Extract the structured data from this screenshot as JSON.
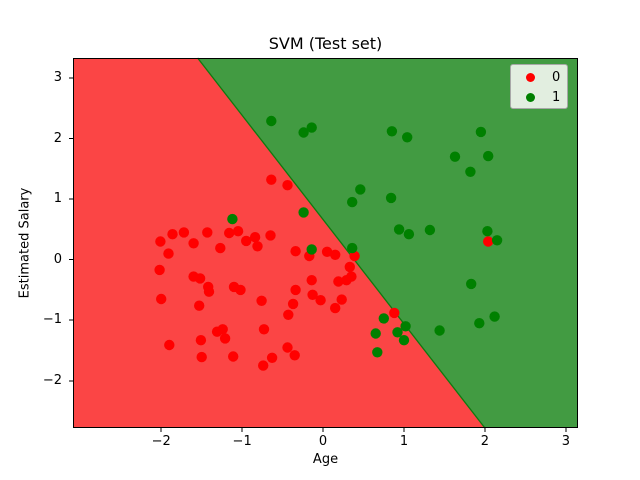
{
  "title": "SVM (Test set)",
  "xlabel": "Age",
  "ylabel": "Estimated Salary",
  "legend": {
    "position": "upper right",
    "items": [
      {
        "label": "0",
        "color": "#ff0000"
      },
      {
        "label": "1",
        "color": "#008000"
      }
    ]
  },
  "chart_data": {
    "type": "scatter",
    "title": "SVM (Test set)",
    "xlabel": "Age",
    "ylabel": "Estimated Salary",
    "xlim": [
      -3.09,
      3.15
    ],
    "ylim": [
      -2.78,
      3.33
    ],
    "grid": false,
    "legend_position": "upper right",
    "x_ticks": {
      "values": [
        -2,
        -1,
        0,
        1,
        2,
        3
      ],
      "labels": [
        "−2",
        "−1",
        "0",
        "1",
        "2",
        "3"
      ]
    },
    "y_ticks": {
      "values": [
        3,
        2,
        1,
        0,
        -1,
        -2
      ],
      "labels": [
        "3",
        "2",
        "1",
        "0",
        "−1",
        "−2"
      ]
    },
    "decision_regions": {
      "class0_color": "#fb4545",
      "class1_color": "#429b42",
      "boundary_color": "#0f7a0f",
      "boundary": {
        "x_at_y_top": -1.55,
        "x_at_y_bottom": 2.0
      }
    },
    "marker_radius": 5.2,
    "series": [
      {
        "name": "0",
        "color": "#ff0000",
        "points": [
          [
            -2.01,
            0.3
          ],
          [
            -1.86,
            0.42
          ],
          [
            -1.72,
            0.45
          ],
          [
            -1.6,
            0.27
          ],
          [
            -1.43,
            0.45
          ],
          [
            -1.27,
            0.19
          ],
          [
            -1.16,
            0.44
          ],
          [
            -1.05,
            0.47
          ],
          [
            -0.95,
            0.31
          ],
          [
            -0.84,
            0.37
          ],
          [
            -0.81,
            0.22
          ],
          [
            -1.91,
            0.1
          ],
          [
            -0.65,
            0.4
          ],
          [
            -0.34,
            0.14
          ],
          [
            0.05,
            0.13
          ],
          [
            0.15,
            0.08
          ],
          [
            -0.17,
            0.06
          ],
          [
            0.39,
            0.06
          ],
          [
            0.33,
            -0.12
          ],
          [
            0.35,
            -0.28
          ],
          [
            -0.14,
            -0.34
          ],
          [
            0.29,
            -0.34
          ],
          [
            0.19,
            -0.36
          ],
          [
            -0.34,
            -0.5
          ],
          [
            -0.13,
            -0.58
          ],
          [
            -0.03,
            -0.67
          ],
          [
            -0.37,
            -0.73
          ],
          [
            0.23,
            -0.66
          ],
          [
            0.15,
            -0.8
          ],
          [
            -0.43,
            -0.91
          ],
          [
            0.88,
            -0.88
          ],
          [
            -2.02,
            -0.17
          ],
          [
            -1.6,
            -0.28
          ],
          [
            -1.52,
            -0.31
          ],
          [
            -1.42,
            -0.45
          ],
          [
            -1.41,
            -0.53
          ],
          [
            -1.1,
            -0.45
          ],
          [
            -1.02,
            -0.5
          ],
          [
            -2.0,
            -0.65
          ],
          [
            -1.53,
            -0.76
          ],
          [
            -0.76,
            -0.68
          ],
          [
            -1.9,
            -1.41
          ],
          [
            -1.51,
            -1.33
          ],
          [
            -1.5,
            -1.61
          ],
          [
            -1.31,
            -1.19
          ],
          [
            -1.24,
            -1.15
          ],
          [
            -1.21,
            -1.3
          ],
          [
            -1.11,
            -1.6
          ],
          [
            -0.73,
            -1.15
          ],
          [
            -0.63,
            -1.62
          ],
          [
            -0.74,
            -1.75
          ],
          [
            -0.44,
            -1.45
          ],
          [
            -0.35,
            -1.58
          ],
          [
            -0.64,
            1.32
          ],
          [
            -0.44,
            1.23
          ],
          [
            2.04,
            0.3
          ]
        ]
      },
      {
        "name": "1",
        "color": "#008000",
        "points": [
          [
            -0.64,
            2.29
          ],
          [
            -0.24,
            2.1
          ],
          [
            -0.14,
            2.18
          ],
          [
            0.85,
            2.12
          ],
          [
            1.04,
            2.02
          ],
          [
            1.95,
            2.11
          ],
          [
            1.63,
            1.7
          ],
          [
            2.04,
            1.71
          ],
          [
            1.82,
            1.45
          ],
          [
            0.46,
            1.16
          ],
          [
            0.36,
            0.95
          ],
          [
            0.84,
            1.02
          ],
          [
            1.32,
            0.49
          ],
          [
            0.94,
            0.5
          ],
          [
            1.06,
            0.42
          ],
          [
            -0.24,
            0.78
          ],
          [
            -1.12,
            0.67
          ],
          [
            -0.14,
            0.17
          ],
          [
            0.36,
            0.19
          ],
          [
            2.03,
            0.47
          ],
          [
            2.15,
            0.32
          ],
          [
            1.83,
            -0.4
          ],
          [
            0.75,
            -0.97
          ],
          [
            1.02,
            -1.1
          ],
          [
            0.92,
            -1.2
          ],
          [
            1.0,
            -1.33
          ],
          [
            0.65,
            -1.22
          ],
          [
            0.67,
            -1.53
          ],
          [
            1.44,
            -1.17
          ],
          [
            1.93,
            -1.05
          ],
          [
            2.12,
            -0.94
          ]
        ]
      }
    ]
  }
}
